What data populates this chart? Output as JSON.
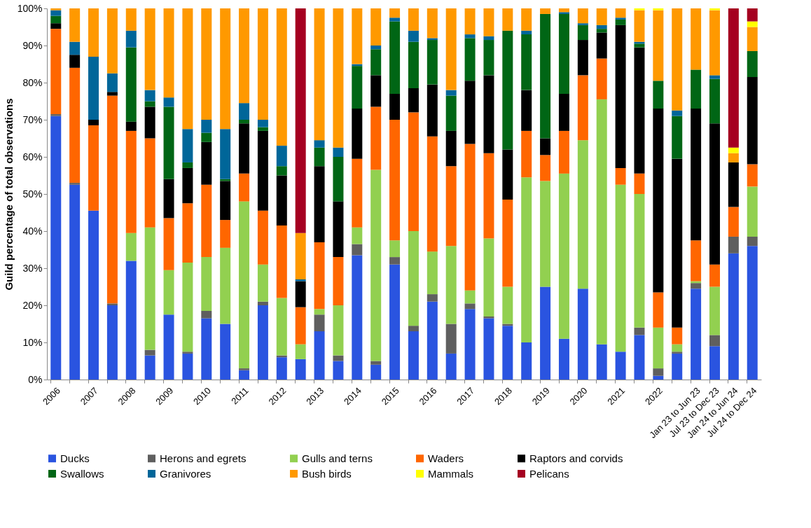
{
  "chart_data": {
    "type": "bar",
    "stacked": true,
    "ylabel": "Guild percentage of total observations",
    "categories": [
      "2006",
      null,
      "2007",
      null,
      "2008",
      null,
      "2009",
      null,
      "2010",
      null,
      "2011",
      null,
      "2012",
      null,
      "2013",
      null,
      "2014",
      null,
      "2015",
      null,
      "2016",
      null,
      "2017",
      null,
      "2018",
      null,
      "2019",
      null,
      "2020",
      null,
      "2021",
      null,
      "2022",
      null,
      "Jan 23 to Jun 23",
      "Jul 23 to Dec 23",
      "Jan 24 to Jun 24",
      "Jul 24 to Dec 24"
    ],
    "ylim": [
      0,
      100
    ],
    "yticks": [
      {
        "value": 0,
        "label": "0%"
      },
      {
        "value": 10,
        "label": "10%"
      },
      {
        "value": 20,
        "label": "20%"
      },
      {
        "value": 30,
        "label": "30%"
      },
      {
        "value": 40,
        "label": "40%"
      },
      {
        "value": 50,
        "label": "50%"
      },
      {
        "value": 60,
        "label": "60%"
      },
      {
        "value": 70,
        "label": "70%"
      },
      {
        "value": 80,
        "label": "80%"
      },
      {
        "value": 90,
        "label": "90%"
      },
      {
        "value": 100,
        "label": "100%"
      }
    ],
    "grid": false,
    "legend": "bottom",
    "series": [
      {
        "name": "Ducks",
        "color": "#2a54e0",
        "values": [
          71,
          52.5,
          45.5,
          20,
          32,
          6.5,
          17.5,
          7,
          16.5,
          15,
          2.5,
          20,
          6,
          5.5,
          13,
          5,
          33.5,
          4,
          31,
          13,
          21,
          7,
          19,
          16.5,
          14.5,
          10,
          25,
          11,
          24.5,
          9.5,
          7.5,
          12,
          1,
          7,
          24.5,
          9,
          34,
          36
        ]
      },
      {
        "name": "Herons and egrets",
        "color": "#5f5f5f",
        "values": [
          0.5,
          0.5,
          0,
          0.5,
          0,
          1.5,
          0,
          0.5,
          2,
          0,
          0.5,
          1,
          0.5,
          0,
          4.5,
          1.5,
          3,
          1,
          2,
          1.5,
          2,
          8,
          1.5,
          0.5,
          0.5,
          0,
          0,
          0,
          0,
          0,
          0,
          2,
          2,
          0.5,
          1.5,
          3,
          4.5,
          2.5
        ]
      },
      {
        "name": "Gulls and terns",
        "color": "#92d050",
        "values": [
          0,
          0,
          0,
          0,
          7.5,
          33,
          12,
          24,
          14.5,
          20.5,
          45,
          10,
          15.5,
          4,
          1.5,
          13.5,
          4.5,
          51.5,
          4.5,
          25.5,
          11.5,
          21,
          3.5,
          21,
          10,
          44.5,
          28.5,
          44.5,
          40,
          66,
          45,
          36,
          11,
          2,
          0.5,
          13,
          0,
          13.5
        ]
      },
      {
        "name": "Waders",
        "color": "#ff6600",
        "values": [
          23,
          31,
          23,
          56,
          27.5,
          24,
          14,
          16,
          19.5,
          7.5,
          7.5,
          14.5,
          19.5,
          10,
          18,
          13,
          18.5,
          17,
          32.5,
          32,
          31,
          21.5,
          39.5,
          23,
          23.5,
          12.5,
          7,
          11.5,
          17.5,
          11,
          4.5,
          5.5,
          9.5,
          4.5,
          11,
          6,
          8,
          6
        ]
      },
      {
        "name": "Raptors and corvids",
        "color": "#000000",
        "values": [
          1.5,
          3.5,
          1.5,
          1,
          2.5,
          8.5,
          10.5,
          9.5,
          11.5,
          10.5,
          13.5,
          21.5,
          13.5,
          7,
          20.5,
          15,
          13.5,
          8.5,
          7,
          6.5,
          14,
          9.5,
          17,
          21,
          13.5,
          11,
          4.5,
          10,
          9.5,
          7,
          38.5,
          34,
          49.5,
          45.5,
          35.5,
          38,
          12,
          23.5
        ]
      },
      {
        "name": "Swallows",
        "color": "#006615",
        "values": [
          2,
          0,
          0,
          0,
          20,
          1.5,
          19.5,
          1.5,
          2.5,
          0.5,
          1,
          1,
          2.5,
          0,
          5,
          12,
          11.5,
          7,
          19.5,
          12.5,
          12,
          9.5,
          11.5,
          9.5,
          32,
          15,
          33.5,
          21.5,
          4,
          1,
          1.5,
          1,
          7.5,
          11.5,
          10.5,
          12,
          0,
          7
        ]
      },
      {
        "name": "Granivores",
        "color": "#006699",
        "values": [
          1.5,
          3.5,
          17,
          5,
          4.5,
          3,
          2.5,
          9,
          3.5,
          13.5,
          4.5,
          2,
          5.5,
          0.5,
          2,
          2.5,
          0.5,
          1,
          1,
          3,
          0.5,
          1.5,
          1,
          1,
          0,
          1,
          0,
          0.5,
          0.5,
          1,
          0.5,
          0.5,
          0,
          1.5,
          0,
          1,
          0,
          0
        ]
      },
      {
        "name": "Bush birds",
        "color": "#ff9900",
        "values": [
          0.5,
          9,
          13,
          17.5,
          6,
          22,
          24,
          32.5,
          30,
          32.5,
          25.5,
          30,
          37,
          12.5,
          35.5,
          37.5,
          15,
          10,
          2.5,
          6,
          8,
          22,
          7,
          7.5,
          6,
          6,
          1.5,
          1,
          4,
          4.5,
          2.5,
          8.5,
          19,
          27.5,
          16.5,
          17.5,
          2.5,
          6.5
        ]
      },
      {
        "name": "Mammals",
        "color": "#ffff00",
        "values": [
          0,
          0,
          0,
          0,
          0,
          0,
          0,
          0,
          0,
          0,
          0,
          0,
          0,
          0,
          0,
          0,
          0,
          0,
          0,
          0,
          0,
          0,
          0,
          0,
          0,
          0,
          0,
          0,
          0,
          0,
          0,
          0.5,
          0.5,
          0,
          0,
          0.5,
          1.5,
          1.5
        ]
      },
      {
        "name": "Pelicans",
        "color": "#a50021",
        "values": [
          0,
          0,
          0,
          0,
          0,
          0,
          0,
          0,
          0,
          0,
          0,
          0,
          0,
          60.5,
          0,
          0,
          0,
          0,
          0,
          0,
          0,
          0,
          0,
          0,
          0,
          0,
          0,
          0,
          0,
          0,
          0,
          0,
          0,
          0,
          0,
          0,
          37.5,
          3.5
        ]
      }
    ]
  }
}
